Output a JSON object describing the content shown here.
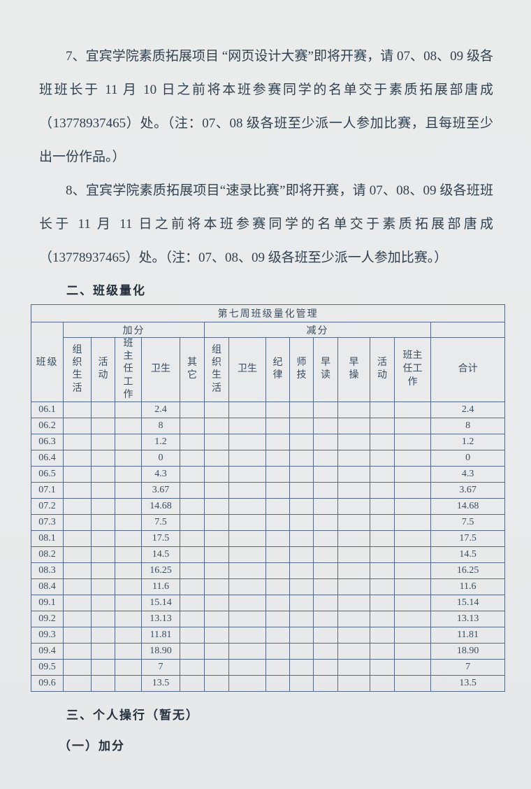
{
  "page": {
    "background": "#e9ebec",
    "ink_color": "#31414f",
    "table_line_color": "#54698a"
  },
  "paragraphs": [
    {
      "text": "7、宜宾学院素质拓展项目 “网页设计大赛”即将开赛，请 07、08、09 级各班班长于 11 月 10 日之前将本班参赛同学的名单交于素质拓展部唐成（13778937465）处。（注：07、08 级各班至少派一人参加比赛，且每班至少出一份作品。）"
    },
    {
      "text": "8、宜宾学院素质拓展项目“速录比赛”即将开赛，请 07、08、09 级各班班长于 11 月 11 日之前将本班参赛同学的名单交于素质拓展部唐成（13778937465）处。（注：07、08、09 级各班至少派一人参加比赛。）"
    }
  ],
  "sections": {
    "class_quant_heading": "二、班级量化",
    "personal_conduct_heading": "三、个人操行（暂无）",
    "personal_add_heading": "（一）加分"
  },
  "table": {
    "title": "第七周班级量化管理",
    "class_col_header": "班级",
    "add_group_header": "加分",
    "subtract_group_header": "减分",
    "total_header": "合计",
    "add_subheaders": [
      "组织生活",
      "活动",
      "班主任工作",
      "卫生",
      "其它"
    ],
    "subtract_subheaders": [
      "组织生活",
      "卫生",
      "纪律",
      "师技",
      "早读",
      "早操",
      "活动",
      "班主任工作"
    ],
    "rows": [
      {
        "class": "06.1",
        "add_weisheng": "2.4",
        "total": "2.4"
      },
      {
        "class": "06.2",
        "add_weisheng": "8",
        "total": "8"
      },
      {
        "class": "06.3",
        "add_weisheng": "1.2",
        "total": "1.2"
      },
      {
        "class": "06.4",
        "add_weisheng": "0",
        "total": "0"
      },
      {
        "class": "06.5",
        "add_weisheng": "4.3",
        "total": "4.3"
      },
      {
        "class": "07.1",
        "add_weisheng": "3.67",
        "total": "3.67"
      },
      {
        "class": "07.2",
        "add_weisheng": "14.68",
        "total": "14.68"
      },
      {
        "class": "07.3",
        "add_weisheng": "7.5",
        "total": "7.5"
      },
      {
        "class": "08.1",
        "add_weisheng": "17.5",
        "total": "17.5"
      },
      {
        "class": "08.2",
        "add_weisheng": "14.5",
        "total": "14.5"
      },
      {
        "class": "08.3",
        "add_weisheng": "16.25",
        "total": "16.25"
      },
      {
        "class": "08.4",
        "add_weisheng": "11.6",
        "total": "11.6"
      },
      {
        "class": "09.1",
        "add_weisheng": "15.14",
        "total": "15.14"
      },
      {
        "class": "09.2",
        "add_weisheng": "13.13",
        "total": "13.13"
      },
      {
        "class": "09.3",
        "add_weisheng": "11.81",
        "total": "11.81"
      },
      {
        "class": "09.4",
        "add_weisheng": "18.90",
        "total": "18.90"
      },
      {
        "class": "09.5",
        "add_weisheng": "7",
        "total": "7"
      },
      {
        "class": "09.6",
        "add_weisheng": "13.5",
        "total": "13.5"
      }
    ]
  }
}
